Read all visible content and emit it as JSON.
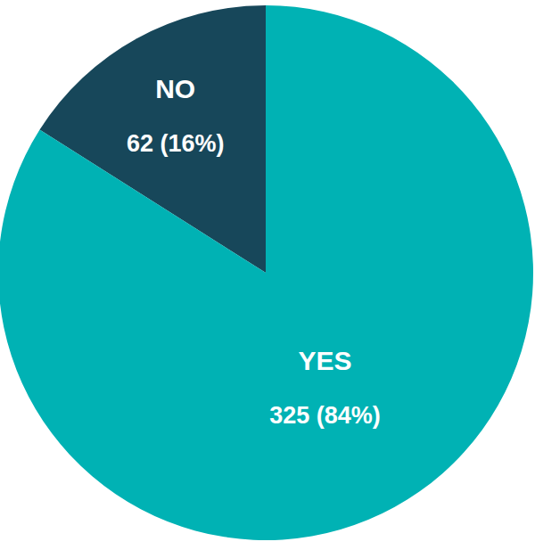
{
  "chart_data": {
    "type": "pie",
    "categories": [
      "NO",
      "YES"
    ],
    "values": [
      62,
      325
    ],
    "value_labels": [
      "62 (16%)",
      "325 (84%)"
    ],
    "colors": [
      "#17475a",
      "#00b2b4"
    ],
    "data_labels": true
  }
}
